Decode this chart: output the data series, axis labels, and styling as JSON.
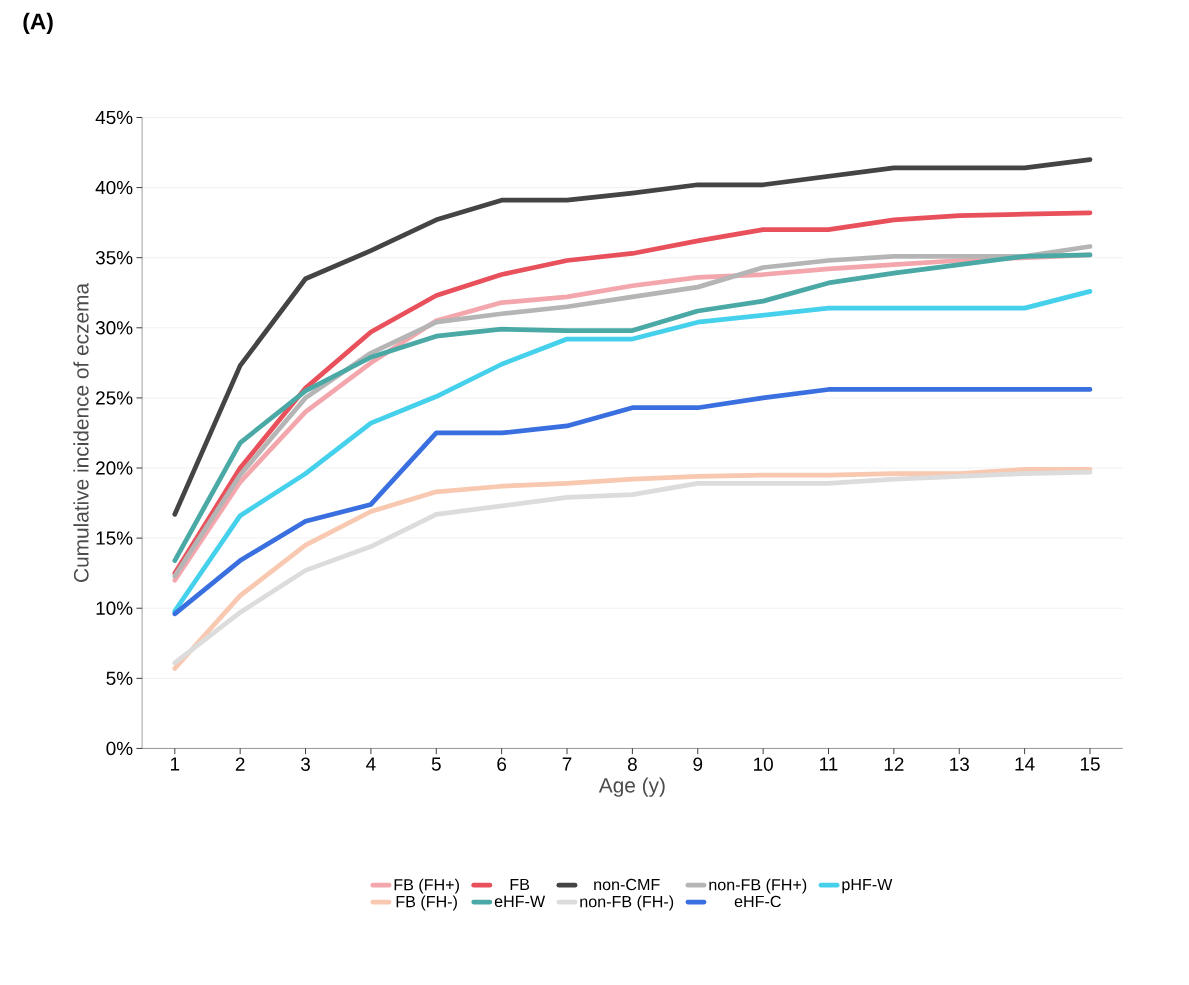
{
  "chart_data": {
    "type": "line",
    "title": "(A)",
    "xlabel": "Age (y)",
    "ylabel": "Cumulative incidence of eczema",
    "x": [
      1,
      2,
      3,
      4,
      5,
      6,
      7,
      8,
      9,
      10,
      11,
      12,
      13,
      14,
      15
    ],
    "xlim": [
      0.5,
      15.5
    ],
    "xticks": [
      1,
      2,
      3,
      4,
      5,
      6,
      7,
      8,
      9,
      10,
      11,
      12,
      13,
      14,
      15
    ],
    "ylim": [
      0,
      45
    ],
    "yticks": [
      {
        "value": 0,
        "label": "0%"
      },
      {
        "value": 5,
        "label": "5%"
      },
      {
        "value": 10,
        "label": "10%"
      },
      {
        "value": 15,
        "label": "15%"
      },
      {
        "value": 20,
        "label": "20%"
      },
      {
        "value": 25,
        "label": "25%"
      },
      {
        "value": 30,
        "label": "30%"
      },
      {
        "value": 35,
        "label": "35%"
      },
      {
        "value": 40,
        "label": "40%"
      },
      {
        "value": 45,
        "label": "45%"
      }
    ],
    "grid": "y",
    "legend": "bottom",
    "marker": "none",
    "line_style": "solid",
    "series": [
      {
        "name": "FB (FH+)",
        "color": "#f4a6ad",
        "values": [
          12.0,
          19.0,
          24.0,
          27.5,
          30.5,
          31.8,
          32.2,
          33.0,
          33.6,
          33.8,
          34.2,
          34.5,
          34.8,
          35.0,
          35.2
        ]
      },
      {
        "name": "FB",
        "color": "#e8505b",
        "values": [
          12.5,
          20.0,
          25.7,
          29.7,
          32.3,
          33.8,
          34.8,
          35.3,
          36.2,
          37.0,
          37.0,
          37.7,
          38.0,
          38.1,
          38.2
        ]
      },
      {
        "name": "non-CMF",
        "color": "#444444",
        "values": [
          16.7,
          27.3,
          33.5,
          35.5,
          37.7,
          39.1,
          39.1,
          39.6,
          40.2,
          40.2,
          40.8,
          41.4,
          41.4,
          41.4,
          42.0
        ]
      },
      {
        "name": "non-FB (FH+)",
        "color": "#b5b5b5",
        "values": [
          12.3,
          19.5,
          25.0,
          28.2,
          30.4,
          31.0,
          31.5,
          32.2,
          32.9,
          34.3,
          34.8,
          35.1,
          35.1,
          35.1,
          35.8
        ]
      },
      {
        "name": "pHF-W",
        "color": "#45d0ec",
        "values": [
          9.8,
          16.6,
          19.6,
          23.2,
          25.1,
          27.4,
          29.2,
          29.2,
          30.4,
          30.9,
          31.4,
          31.4,
          31.4,
          31.4,
          32.6
        ]
      },
      {
        "name": "FB (FH-)",
        "color": "#f8c8b0",
        "values": [
          5.7,
          10.9,
          14.5,
          16.9,
          18.3,
          18.7,
          18.9,
          19.2,
          19.4,
          19.5,
          19.5,
          19.6,
          19.6,
          19.9,
          19.9
        ]
      },
      {
        "name": "eHF-W",
        "color": "#4aa9a5",
        "values": [
          13.4,
          21.8,
          25.5,
          27.9,
          29.4,
          29.9,
          29.8,
          29.8,
          31.2,
          31.9,
          33.2,
          33.9,
          34.5,
          35.1,
          35.2
        ]
      },
      {
        "name": "non-FB (FH-)",
        "color": "#dcdcdc",
        "values": [
          6.1,
          9.7,
          12.7,
          14.4,
          16.7,
          17.3,
          17.9,
          18.1,
          18.9,
          18.9,
          18.9,
          19.2,
          19.4,
          19.6,
          19.7
        ]
      },
      {
        "name": "eHF-C",
        "color": "#3a6fe0",
        "values": [
          9.6,
          13.4,
          16.2,
          17.4,
          22.5,
          22.5,
          23.0,
          24.3,
          24.3,
          25.0,
          25.6,
          25.6,
          25.6,
          25.6,
          25.6
        ]
      }
    ]
  }
}
